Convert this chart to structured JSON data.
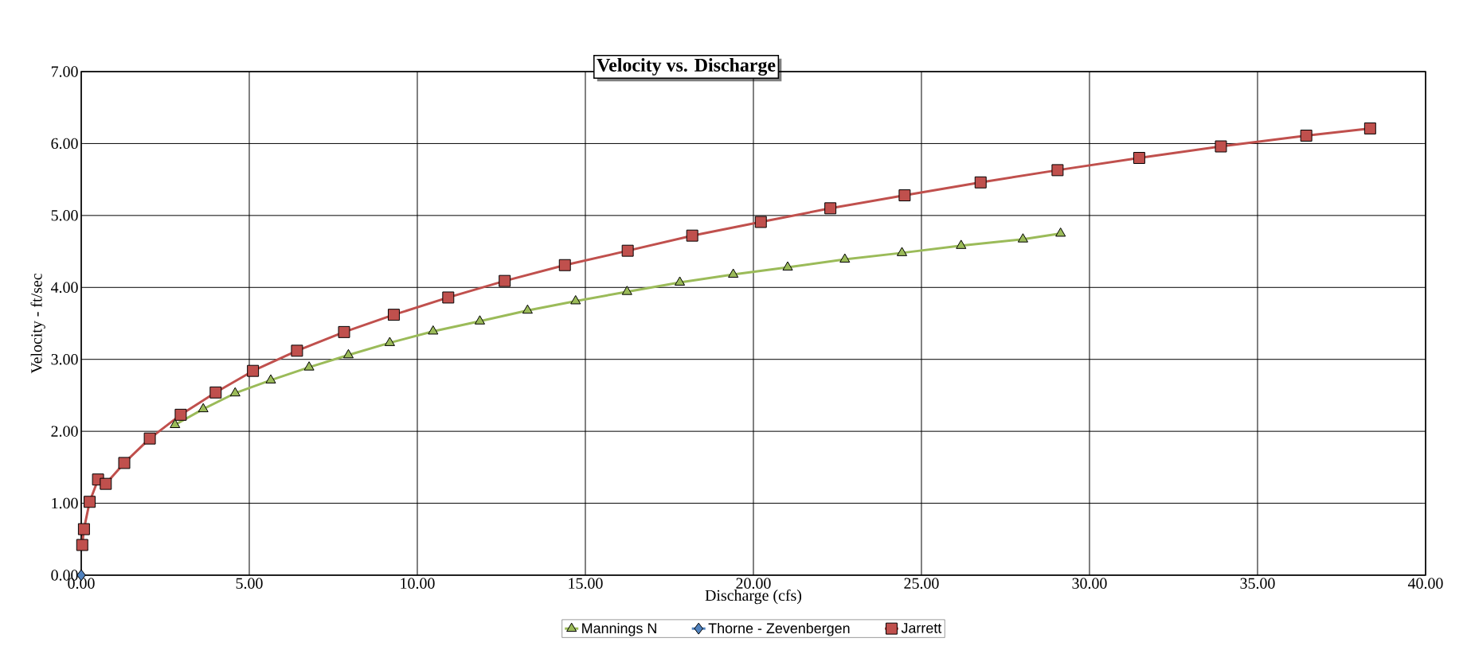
{
  "chart_data": {
    "type": "line",
    "title": "Velocity vs. Discharge",
    "xlabel": "Discharge (cfs)",
    "ylabel": "Velocity - ft/sec",
    "xlim": [
      0,
      40
    ],
    "ylim": [
      0,
      7
    ],
    "xticks": [
      {
        "value": 0,
        "label": "0.00"
      },
      {
        "value": 5,
        "label": "5.00"
      },
      {
        "value": 10,
        "label": "10.00"
      },
      {
        "value": 15,
        "label": "15.00"
      },
      {
        "value": 20,
        "label": "20.00"
      },
      {
        "value": 25,
        "label": "25.00"
      },
      {
        "value": 30,
        "label": "30.00"
      },
      {
        "value": 35,
        "label": "35.00"
      },
      {
        "value": 40,
        "label": "40.00"
      }
    ],
    "yticks": [
      {
        "value": 0,
        "label": "0.00"
      },
      {
        "value": 1,
        "label": "1.00"
      },
      {
        "value": 2,
        "label": "2.00"
      },
      {
        "value": 3,
        "label": "3.00"
      },
      {
        "value": 4,
        "label": "4.00"
      },
      {
        "value": 5,
        "label": "5.00"
      },
      {
        "value": 6,
        "label": "6.00"
      },
      {
        "value": 7,
        "label": "7.00"
      }
    ],
    "grid": true,
    "legend": "bottom",
    "line_style": "solid",
    "series": [
      {
        "name": "Mannings N",
        "color": "#9bbb59",
        "marker": "triangle",
        "x": [
          2.79,
          3.63,
          4.58,
          5.64,
          6.78,
          7.95,
          9.18,
          10.47,
          11.86,
          13.28,
          14.71,
          16.24,
          17.81,
          19.4,
          21.02,
          22.72,
          24.42,
          26.18,
          28.02,
          29.14
        ],
        "values": [
          2.09,
          2.31,
          2.53,
          2.71,
          2.89,
          3.06,
          3.23,
          3.39,
          3.53,
          3.68,
          3.81,
          3.94,
          4.07,
          4.18,
          4.28,
          4.39,
          4.48,
          4.58,
          4.67,
          4.75
        ]
      },
      {
        "name": "Thorne - Zevenbergen",
        "color": "#4f81bd",
        "marker": "diamond",
        "x": [
          0
        ],
        "values": [
          0
        ]
      },
      {
        "name": "Jarrett",
        "color": "#c0504d",
        "marker": "square",
        "x": [
          0.03,
          0.08,
          0.25,
          0.5,
          0.73,
          1.28,
          2.04,
          2.96,
          4.0,
          5.11,
          6.42,
          7.82,
          9.3,
          10.92,
          12.6,
          14.39,
          16.26,
          18.18,
          20.22,
          22.29,
          24.5,
          26.76,
          29.05,
          31.48,
          33.91,
          36.45,
          38.35
        ],
        "values": [
          0.42,
          0.64,
          1.02,
          1.33,
          1.27,
          1.56,
          1.9,
          2.23,
          2.54,
          2.84,
          3.12,
          3.38,
          3.62,
          3.86,
          4.09,
          4.31,
          4.51,
          4.72,
          4.91,
          5.1,
          5.28,
          5.46,
          5.63,
          5.8,
          5.96,
          6.11,
          6.21
        ]
      }
    ]
  }
}
